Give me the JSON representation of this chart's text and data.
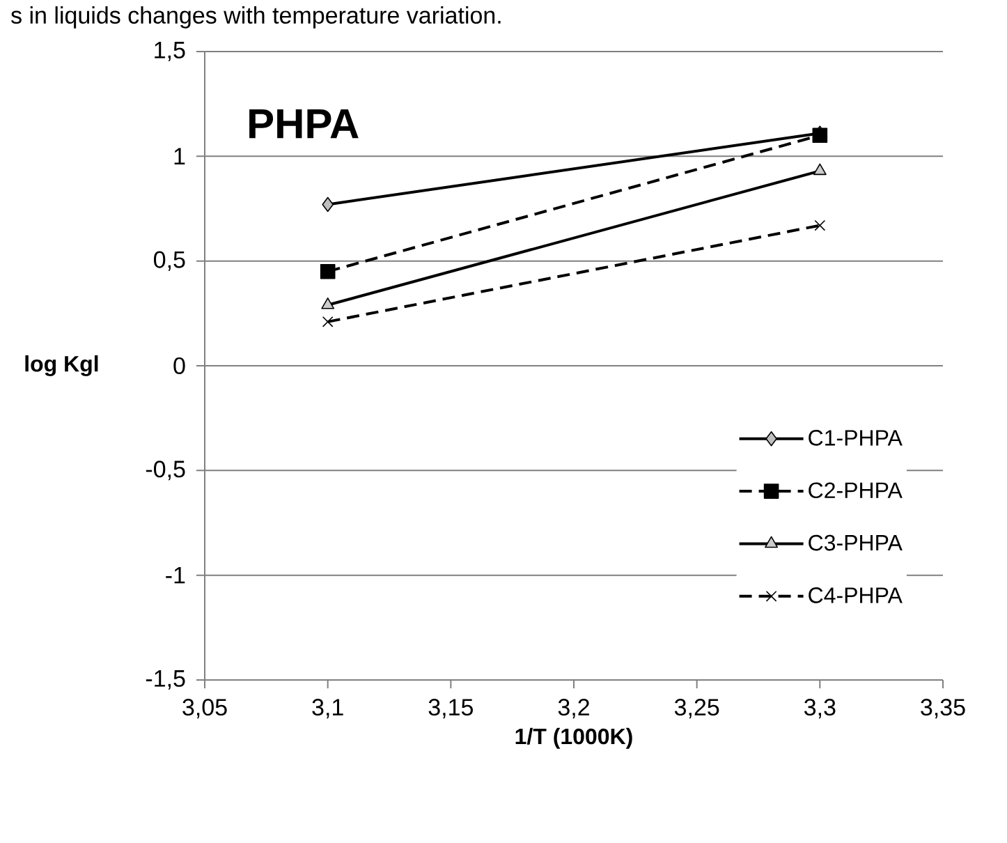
{
  "chart_data": {
    "type": "line",
    "title": "PHPA",
    "xlabel": "1/T (1000K)",
    "ylabel": "log Kgl",
    "annotations": [
      "s in liquids changes with temperature variation."
    ],
    "xlim": [
      3.05,
      3.35
    ],
    "xticks": [
      {
        "value": 3.05,
        "label": "3,05"
      },
      {
        "value": 3.1,
        "label": "3,1"
      },
      {
        "value": 3.15,
        "label": "3,15"
      },
      {
        "value": 3.2,
        "label": "3,2"
      },
      {
        "value": 3.25,
        "label": "3,25"
      },
      {
        "value": 3.3,
        "label": "3,3"
      },
      {
        "value": 3.35,
        "label": "3,35"
      }
    ],
    "ylim": [
      -1.5,
      1.5
    ],
    "yticks": [
      {
        "value": -1.5,
        "label": "-1,5"
      },
      {
        "value": -1,
        "label": "-1"
      },
      {
        "value": -0.5,
        "label": "-0,5"
      },
      0,
      {
        "value": 0.5,
        "label": "0,5"
      },
      1,
      {
        "value": 1.5,
        "label": "1,5"
      }
    ],
    "x": [
      3.1,
      3.3
    ],
    "grid": "y",
    "legend": "right",
    "series": [
      {
        "name": "C1-PHPA",
        "color": "#000000",
        "marker": "diamond",
        "line_style": "solid",
        "values": [
          0.77,
          1.11
        ]
      },
      {
        "name": "C2-PHPA",
        "color": "#000000",
        "marker": "square",
        "line_style": "dashed",
        "values": [
          0.45,
          1.1
        ]
      },
      {
        "name": "C3-PHPA",
        "color": "#000000",
        "marker": "triangle",
        "line_style": "solid",
        "values": [
          0.29,
          0.93
        ]
      },
      {
        "name": "C4-PHPA",
        "color": "#000000",
        "marker": "cross",
        "line_style": "dashed",
        "values": [
          0.21,
          0.67
        ]
      }
    ]
  }
}
